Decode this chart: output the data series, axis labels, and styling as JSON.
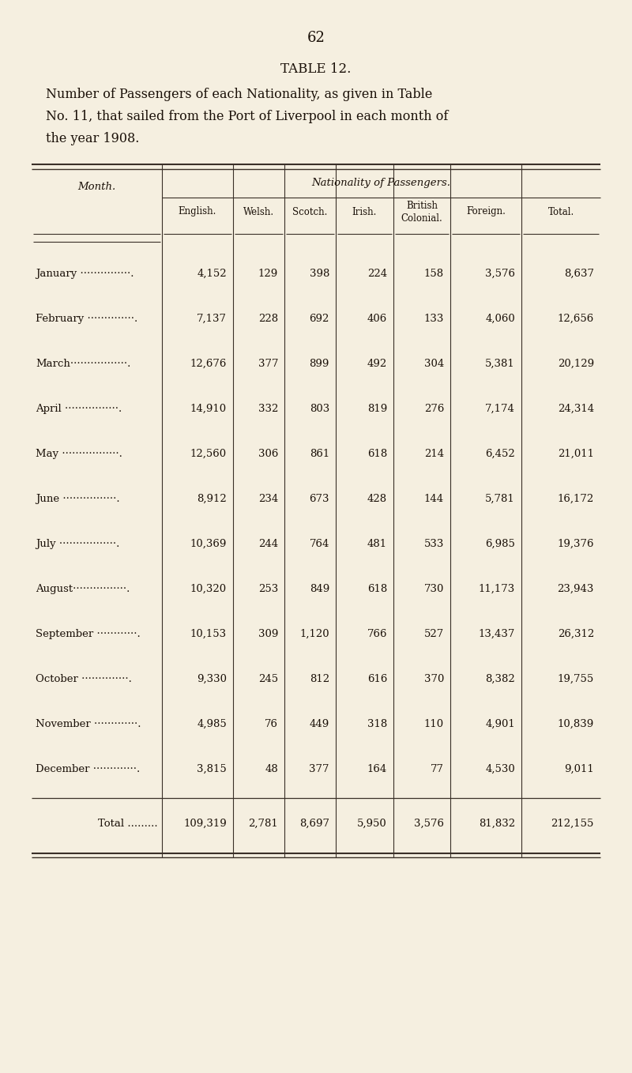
{
  "page_number": "62",
  "title": "TABLE 12.",
  "subtitle_lines": [
    "Number of Passengers of each Nationality, as given in Table",
    "No. 11, that sailed from the Port of Liverpool in each month of",
    "the year 1908."
  ],
  "bg_color": "#f5efe0",
  "header_nationality": "Nationality of Passengers.",
  "header_month": "Month.",
  "columns": [
    "English.",
    "Welsh.",
    "Scotch.",
    "Irish.",
    "British\nColonial.",
    "Foreign.",
    "Total."
  ],
  "months": [
    "January ···············.",
    "February ··············.",
    "March·················.",
    "April ················.",
    "May ·················.",
    "June ················.",
    "July ·················.",
    "August················.",
    "September ············.",
    "October ··············.",
    "November ·············.",
    "December ·············."
  ],
  "data": [
    [
      "4,152",
      "129",
      "398",
      "224",
      "158",
      "3,576",
      "8,637"
    ],
    [
      "7,137",
      "228",
      "692",
      "406",
      "133",
      "4,060",
      "12,656"
    ],
    [
      "12,676",
      "377",
      "899",
      "492",
      "304",
      "5,381",
      "20,129"
    ],
    [
      "14,910",
      "332",
      "803",
      "819",
      "276",
      "7,174",
      "24,314"
    ],
    [
      "12,560",
      "306",
      "861",
      "618",
      "214",
      "6,452",
      "21,011"
    ],
    [
      "8,912",
      "234",
      "673",
      "428",
      "144",
      "5,781",
      "16,172"
    ],
    [
      "10,369",
      "244",
      "764",
      "481",
      "533",
      "6,985",
      "19,376"
    ],
    [
      "10,320",
      "253",
      "849",
      "618",
      "730",
      "11,173",
      "23,943"
    ],
    [
      "10,153",
      "309",
      "1,120",
      "766",
      "527",
      "13,437",
      "26,312"
    ],
    [
      "9,330",
      "245",
      "812",
      "616",
      "370",
      "8,382",
      "19,755"
    ],
    [
      "4,985",
      "76",
      "449",
      "318",
      "110",
      "4,901",
      "10,839"
    ],
    [
      "3,815",
      "48",
      "377",
      "164",
      "77",
      "4,530",
      "9,011"
    ]
  ],
  "totals": [
    "109,319",
    "2,781",
    "8,697",
    "5,950",
    "3,576",
    "81,832",
    "212,155"
  ],
  "total_label": "Total .........",
  "text_color": "#1a1008",
  "line_color": "#3a3028"
}
